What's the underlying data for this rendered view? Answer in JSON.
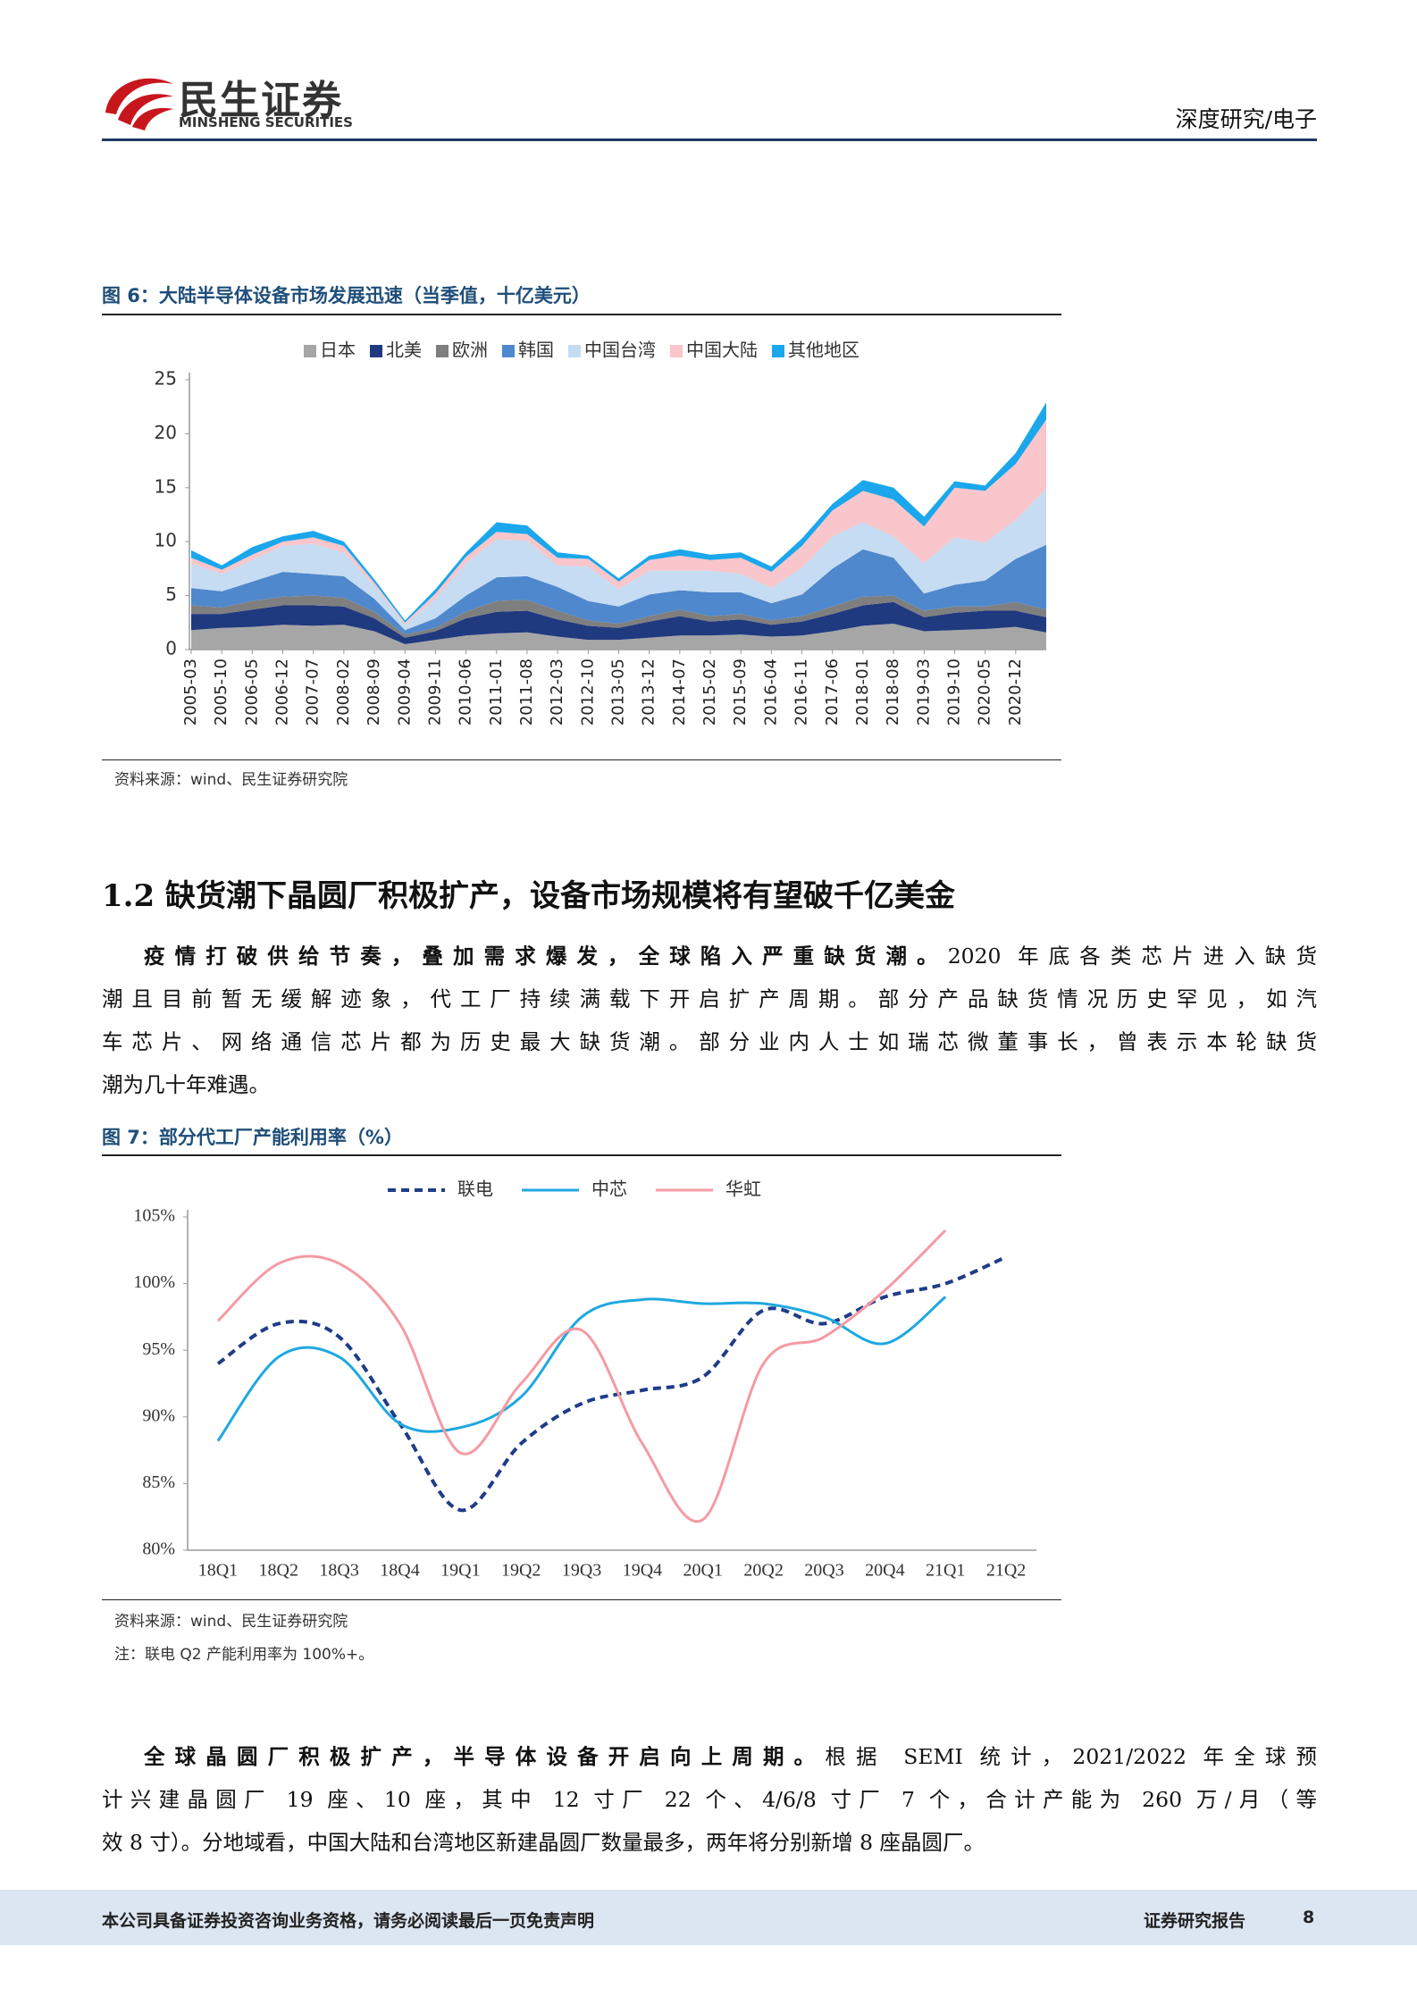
{
  "header": {
    "logo_cn": "民生证券",
    "logo_en": "MINSHENG SECURITIES",
    "section": "深度研究/电子"
  },
  "chart_data": [
    {
      "type": "stacked_area",
      "title": "图 6：大陆半导体设备市场发展迅速（当季值，十亿美元）",
      "source": "资料来源：wind、民生证券研究院",
      "legend": "top",
      "categories": [
        "2005-03",
        "2005-10",
        "2006-05",
        "2006-12",
        "2007-07",
        "2008-02",
        "2008-09",
        "2009-04",
        "2009-11",
        "2010-06",
        "2011-01",
        "2011-08",
        "2012-03",
        "2012-10",
        "2013-05",
        "2013-12",
        "2014-07",
        "2015-02",
        "2015-09",
        "2016-04",
        "2016-11",
        "2017-06",
        "2018-01",
        "2018-08",
        "2019-03",
        "2019-10",
        "2020-05",
        "2020-12",
        null
      ],
      "series": [
        {
          "name": "日本",
          "color": "#a6a6a6",
          "values": [
            1.8,
            2.0,
            2.1,
            2.3,
            2.2,
            2.3,
            1.7,
            0.5,
            0.9,
            1.3,
            1.5,
            1.6,
            1.2,
            0.9,
            0.9,
            1.1,
            1.3,
            1.3,
            1.4,
            1.2,
            1.3,
            1.7,
            2.2,
            2.4,
            1.7,
            1.8,
            1.9,
            2.1,
            1.6
          ]
        },
        {
          "name": "北美",
          "color": "#203a80",
          "values": [
            1.5,
            1.3,
            1.6,
            1.8,
            1.9,
            1.7,
            1.2,
            0.6,
            0.8,
            1.6,
            2.0,
            2.0,
            1.6,
            1.3,
            1.1,
            1.5,
            1.8,
            1.3,
            1.4,
            1.1,
            1.3,
            1.6,
            1.9,
            2.0,
            1.3,
            1.6,
            1.7,
            1.5,
            1.4
          ]
        },
        {
          "name": "欧洲",
          "color": "#7f7f7f",
          "values": [
            0.8,
            0.6,
            0.8,
            0.8,
            0.9,
            0.8,
            0.6,
            0.3,
            0.3,
            0.6,
            1.0,
            1.0,
            0.8,
            0.5,
            0.4,
            0.5,
            0.6,
            0.5,
            0.5,
            0.4,
            0.5,
            0.7,
            0.8,
            0.6,
            0.6,
            0.6,
            0.4,
            0.8,
            0.7
          ]
        },
        {
          "name": "韩国",
          "color": "#4f88cc",
          "values": [
            1.6,
            1.5,
            1.8,
            2.3,
            2.0,
            2.0,
            1.2,
            0.4,
            0.9,
            1.5,
            2.2,
            2.2,
            2.2,
            1.8,
            1.6,
            2.0,
            1.8,
            2.2,
            2.0,
            1.6,
            2.0,
            3.5,
            4.4,
            3.5,
            1.6,
            2.0,
            2.4,
            4.0,
            6.0
          ]
        },
        {
          "name": "中国台湾",
          "color": "#c6dcf2",
          "values": [
            2.3,
            1.6,
            2.0,
            2.4,
            2.8,
            2.2,
            1.2,
            0.5,
            1.8,
            3.0,
            3.5,
            3.3,
            2.0,
            3.2,
            1.6,
            2.2,
            1.8,
            2.0,
            1.7,
            1.4,
            2.5,
            3.0,
            2.5,
            2.0,
            2.8,
            4.4,
            3.5,
            3.6,
            5.2
          ]
        },
        {
          "name": "中国大陆",
          "color": "#f8c6cb",
          "values": [
            0.5,
            0.4,
            0.5,
            0.4,
            0.6,
            0.6,
            0.3,
            0.2,
            0.5,
            0.6,
            0.7,
            0.6,
            0.7,
            0.7,
            0.7,
            1.0,
            1.4,
            1.0,
            1.5,
            1.5,
            2.0,
            2.4,
            2.9,
            3.4,
            3.4,
            4.6,
            4.8,
            5.2,
            6.4
          ]
        },
        {
          "name": "其他地区",
          "color": "#1aa7ec",
          "values": [
            0.7,
            0.4,
            0.7,
            0.5,
            0.6,
            0.4,
            0.3,
            0.2,
            0.4,
            0.4,
            0.9,
            0.8,
            0.5,
            0.3,
            0.3,
            0.4,
            0.6,
            0.5,
            0.5,
            0.5,
            0.7,
            0.6,
            1.0,
            1.1,
            0.9,
            0.6,
            0.5,
            1.0,
            1.6
          ]
        }
      ],
      "ylim": [
        0,
        25
      ],
      "yticks": [
        0,
        5,
        10,
        15,
        20,
        25
      ]
    },
    {
      "type": "line",
      "title": "图 7：部分代工厂产能利用率（%）",
      "source": "资料来源：wind、民生证券研究院",
      "note": "注：联电 Q2 产能利用率为 100%+。",
      "legend": "top",
      "smooth": true,
      "categories": [
        "18Q1",
        "18Q2",
        "18Q3",
        "18Q4",
        "19Q1",
        "19Q2",
        "19Q3",
        "19Q4",
        "20Q1",
        "20Q2",
        "20Q3",
        "20Q4",
        "21Q1",
        "21Q2"
      ],
      "series": [
        {
          "name": "联电",
          "color": "#1f3c88",
          "dashed": true,
          "values": [
            94,
            97,
            96,
            89.5,
            83,
            88,
            91,
            92,
            93,
            98,
            97,
            99,
            100,
            102
          ]
        },
        {
          "name": "中芯",
          "color": "#1fa8e0",
          "dashed": false,
          "values": [
            88.2,
            94.5,
            94.5,
            89.5,
            89.2,
            91.5,
            97.5,
            98.8,
            98.5,
            98.5,
            97.5,
            95.5,
            99,
            null
          ]
        },
        {
          "name": "华虹",
          "color": "#f59aa3",
          "dashed": false,
          "values": [
            97.2,
            101.5,
            101.5,
            97,
            87.3,
            92.5,
            96.5,
            88,
            82.3,
            94,
            96,
            99.5,
            104,
            null
          ]
        }
      ],
      "ylim": [
        80,
        105
      ],
      "yticks": [
        {
          "value": 80,
          "label": "80%"
        },
        {
          "value": 85,
          "label": "85%"
        },
        {
          "value": 90,
          "label": "90%"
        },
        {
          "value": 95,
          "label": "95%"
        },
        {
          "value": 100,
          "label": "100%"
        },
        {
          "value": 105,
          "label": "105%"
        }
      ]
    }
  ],
  "section": {
    "heading": "1.2  缺货潮下晶圆厂积极扩产，设备市场规模将有望破千亿美金"
  },
  "paragraphs": [
    {
      "lead": "疫情打破供给节奏，叠加需求爆发，全球陷入严重缺货潮。",
      "lines": [
        "2020 年底各类芯片进入缺货",
        "潮且目前暂无缓解迹象，代工厂持续满载下开启扩产周期。部分产品缺货情况历史罕见，如汽",
        "车芯片、网络通信芯片都为历史最大缺货潮。部分业内人士如瑞芯微董事长，曾表示本轮缺货",
        "潮为几十年难遇。"
      ]
    },
    {
      "lead": "全球晶圆厂积极扩产，半导体设备开启向上周期。",
      "lines": [
        "根据 SEMI 统计，2021/2022 年全球预",
        "计兴建晶圆厂 19 座、10 座，其中 12 寸厂 22 个、4/6/8 寸厂 7 个，合计产能为 260 万/月（等",
        "效 8 寸）。分地域看，中国大陆和台湾地区新建晶圆厂数量最多，两年将分别新增 8 座晶圆厂。"
      ]
    }
  ],
  "footer": {
    "disclaimer": "本公司具备证券投资咨询业务资格，请务必阅读最后一页免责声明",
    "report_type": "证券研究报告",
    "page": "8"
  }
}
